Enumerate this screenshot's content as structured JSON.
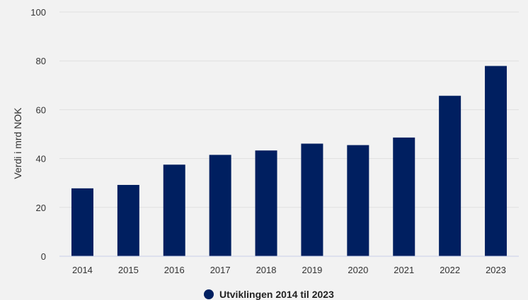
{
  "chart_data": {
    "type": "bar",
    "categories": [
      "2014",
      "2015",
      "2016",
      "2017",
      "2018",
      "2019",
      "2020",
      "2021",
      "2022",
      "2023"
    ],
    "series": [
      {
        "name": "Utviklingen 2014 til 2023",
        "values": [
          27.8,
          29.2,
          37.5,
          41.5,
          43.3,
          46.1,
          45.5,
          48.6,
          65.7,
          77.9
        ]
      }
    ],
    "ylabel": "Verdi i mrd NOK",
    "ylim": [
      0,
      100
    ],
    "yticks": [
      "0",
      "20",
      "40",
      "60",
      "80",
      "100"
    ],
    "grid": true,
    "legend_position": "bottom",
    "colors": {
      "bar": "#001f60",
      "grid": "#e0e0e0",
      "axis": "#c8cde8",
      "background": "#f2f2f2"
    }
  }
}
